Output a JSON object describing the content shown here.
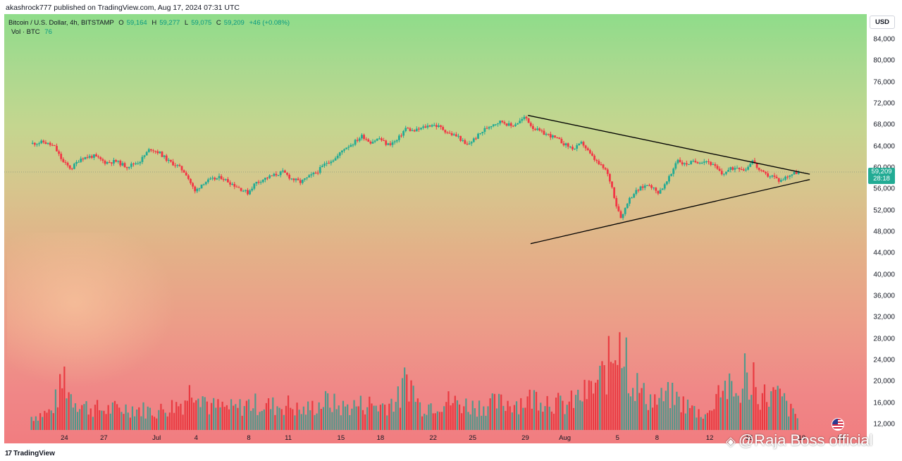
{
  "header": {
    "author_line": "akashrock777 published on TradingView.com, Aug 17, 2024 07:31 UTC"
  },
  "legend": {
    "symbol": "Bitcoin / U.S. Dollar, 4h, BITSTAMP",
    "o_label": "O",
    "o_value": "59,164",
    "h_label": "H",
    "h_value": "59,277",
    "l_label": "L",
    "l_value": "59,075",
    "c_label": "C",
    "c_value": "59,209",
    "change": "+46 (+0.08%)",
    "vol_label": "Vol · BTC",
    "vol_value": "76"
  },
  "currency_button": "USD",
  "last_price": {
    "price": "59,209",
    "countdown": "28:18"
  },
  "footer": {
    "logo_mark": "17",
    "logo_text": "TradingView",
    "watermark": "@Raja Boss official",
    "watermark_icon": "diamond-icon"
  },
  "colors": {
    "up": "#22ab94",
    "down": "#f23645",
    "up_volume": "#3f9a8c",
    "down_volume": "#e8323a",
    "trendline": "#000000",
    "price_line": "#8f9a80"
  },
  "chart_data": {
    "type": "candlestick",
    "title": "Bitcoin / U.S. Dollar, 4h, BITSTAMP",
    "ylim": [
      10000,
      88000
    ],
    "y_ticks": [
      12000,
      16000,
      20000,
      24000,
      28000,
      32000,
      36000,
      40000,
      44000,
      48000,
      52000,
      56000,
      60000,
      64000,
      68000,
      72000,
      76000,
      80000,
      84000
    ],
    "y_tick_labels": [
      "12,000",
      "16,000",
      "20,000",
      "24,000",
      "28,000",
      "32,000",
      "36,000",
      "40,000",
      "44,000",
      "48,000",
      "52,000",
      "56,000",
      "60,000",
      "64,000",
      "68,000",
      "72,000",
      "76,000",
      "80,000",
      "84,000"
    ],
    "x_ticks": [
      {
        "label": "24",
        "day": 24
      },
      {
        "label": "27",
        "day": 27
      },
      {
        "label": "Jul",
        "day": 31
      },
      {
        "label": "4",
        "day": 34
      },
      {
        "label": "8",
        "day": 38
      },
      {
        "label": "11",
        "day": 41
      },
      {
        "label": "15",
        "day": 45
      },
      {
        "label": "18",
        "day": 48
      },
      {
        "label": "22",
        "day": 52
      },
      {
        "label": "25",
        "day": 55
      },
      {
        "label": "29",
        "day": 59
      },
      {
        "label": "Aug",
        "day": 62
      },
      {
        "label": "5",
        "day": 66
      },
      {
        "label": "8",
        "day": 69
      },
      {
        "label": "12",
        "day": 73
      },
      {
        "label": "15",
        "day": 76
      },
      {
        "label": "19",
        "day": 80
      },
      {
        "label": "22",
        "day": 83
      }
    ],
    "x_range_days": [
      21.4,
      85.5
    ],
    "price_path": [
      [
        21.5,
        64500
      ],
      [
        22.5,
        64800
      ],
      [
        23.3,
        64000
      ],
      [
        24.0,
        61000
      ],
      [
        24.6,
        59800
      ],
      [
        25.3,
        61800
      ],
      [
        26.3,
        62200
      ],
      [
        27.2,
        61000
      ],
      [
        28.0,
        61200
      ],
      [
        28.8,
        60200
      ],
      [
        29.8,
        61200
      ],
      [
        30.6,
        63600
      ],
      [
        31.3,
        62800
      ],
      [
        32.0,
        61200
      ],
      [
        32.7,
        60300
      ],
      [
        33.3,
        59000
      ],
      [
        34.0,
        55500
      ],
      [
        34.6,
        57200
      ],
      [
        35.3,
        57800
      ],
      [
        36.0,
        58200
      ],
      [
        36.6,
        57300
      ],
      [
        37.3,
        56300
      ],
      [
        38.0,
        55300
      ],
      [
        38.6,
        57200
      ],
      [
        39.3,
        58000
      ],
      [
        40.0,
        58600
      ],
      [
        40.7,
        59200
      ],
      [
        41.3,
        58000
      ],
      [
        42.0,
        57300
      ],
      [
        42.6,
        58200
      ],
      [
        43.3,
        59300
      ],
      [
        44.0,
        61000
      ],
      [
        44.7,
        61800
      ],
      [
        45.3,
        63600
      ],
      [
        46.0,
        64600
      ],
      [
        46.7,
        66000
      ],
      [
        47.3,
        64800
      ],
      [
        48.0,
        65500
      ],
      [
        48.6,
        64300
      ],
      [
        49.3,
        65000
      ],
      [
        50.0,
        67400
      ],
      [
        50.6,
        66800
      ],
      [
        51.3,
        67500
      ],
      [
        52.0,
        68100
      ],
      [
        52.6,
        67600
      ],
      [
        53.3,
        66400
      ],
      [
        54.0,
        65800
      ],
      [
        54.6,
        64100
      ],
      [
        55.3,
        65600
      ],
      [
        56.0,
        67200
      ],
      [
        56.6,
        68200
      ],
      [
        57.3,
        68700
      ],
      [
        58.0,
        67800
      ],
      [
        58.6,
        68600
      ],
      [
        59.1,
        69500
      ],
      [
        59.6,
        67600
      ],
      [
        60.3,
        66600
      ],
      [
        61.0,
        66000
      ],
      [
        61.6,
        65200
      ],
      [
        62.2,
        64200
      ],
      [
        62.8,
        63500
      ],
      [
        63.4,
        64700
      ],
      [
        64.0,
        62500
      ],
      [
        64.6,
        60800
      ],
      [
        65.2,
        59500
      ],
      [
        65.6,
        57000
      ],
      [
        66.0,
        53000
      ],
      [
        66.4,
        50500
      ],
      [
        66.8,
        53500
      ],
      [
        67.3,
        55200
      ],
      [
        67.9,
        56300
      ],
      [
        68.5,
        57000
      ],
      [
        69.1,
        55300
      ],
      [
        69.7,
        56800
      ],
      [
        70.2,
        59000
      ],
      [
        70.6,
        61700
      ],
      [
        71.1,
        60600
      ],
      [
        71.7,
        61000
      ],
      [
        72.3,
        61200
      ],
      [
        72.9,
        61300
      ],
      [
        73.5,
        60100
      ],
      [
        74.0,
        58800
      ],
      [
        74.6,
        59700
      ],
      [
        75.2,
        60200
      ],
      [
        75.8,
        59600
      ],
      [
        76.3,
        61500
      ],
      [
        76.9,
        59300
      ],
      [
        77.4,
        58600
      ],
      [
        77.9,
        58400
      ],
      [
        78.4,
        57500
      ],
      [
        79.0,
        58500
      ],
      [
        79.5,
        59000
      ],
      [
        79.8,
        59209
      ]
    ],
    "volume_path": [
      [
        21.5,
        2500
      ],
      [
        23.0,
        3500
      ],
      [
        24.0,
        9500
      ],
      [
        24.5,
        6500
      ],
      [
        25.5,
        4500
      ],
      [
        27.0,
        3800
      ],
      [
        29.0,
        4200
      ],
      [
        31.0,
        3500
      ],
      [
        33.0,
        5200
      ],
      [
        34.0,
        9000
      ],
      [
        35.0,
        4500
      ],
      [
        37.0,
        4000
      ],
      [
        38.0,
        5000
      ],
      [
        40.0,
        4500
      ],
      [
        41.0,
        4800
      ],
      [
        42.0,
        3500
      ],
      [
        44.0,
        5500
      ],
      [
        45.0,
        4200
      ],
      [
        47.0,
        5000
      ],
      [
        48.0,
        4500
      ],
      [
        49.5,
        6000
      ],
      [
        50.0,
        10500
      ],
      [
        51.0,
        4500
      ],
      [
        53.0,
        5500
      ],
      [
        55.0,
        4500
      ],
      [
        57.0,
        5000
      ],
      [
        59.0,
        5500
      ],
      [
        60.0,
        6500
      ],
      [
        62.0,
        4500
      ],
      [
        63.0,
        6000
      ],
      [
        64.0,
        7500
      ],
      [
        65.0,
        10500
      ],
      [
        66.0,
        16000
      ],
      [
        66.5,
        14000
      ],
      [
        67.0,
        10000
      ],
      [
        68.0,
        6500
      ],
      [
        69.0,
        5500
      ],
      [
        70.0,
        6500
      ],
      [
        71.0,
        5000
      ],
      [
        72.0,
        3500
      ],
      [
        73.0,
        3000
      ],
      [
        73.5,
        7500
      ],
      [
        74.0,
        8500
      ],
      [
        75.0,
        6500
      ],
      [
        76.0,
        9000
      ],
      [
        76.5,
        7000
      ],
      [
        77.0,
        6500
      ],
      [
        78.0,
        6500
      ],
      [
        78.5,
        6000
      ],
      [
        79.0,
        4000
      ],
      [
        79.8,
        2000
      ]
    ],
    "volume_axis_max": 20000,
    "volume_peaks": [
      {
        "day": 24.0,
        "value": 12000
      },
      {
        "day": 50.0,
        "value": 10500
      },
      {
        "day": 66.2,
        "value": 18500
      },
      {
        "day": 66.6,
        "value": 17500
      },
      {
        "day": 75.6,
        "value": 14500
      },
      {
        "day": 76.4,
        "value": 12800
      }
    ],
    "annotations": [
      {
        "type": "trendline",
        "from": {
          "day": 59.2,
          "price": 69800
        },
        "to": {
          "day": 80.6,
          "price": 58800
        }
      },
      {
        "type": "trendline",
        "from": {
          "day": 59.4,
          "price": 45800
        },
        "to": {
          "day": 80.6,
          "price": 57800
        }
      }
    ],
    "last_price": 59209,
    "grid": false
  }
}
